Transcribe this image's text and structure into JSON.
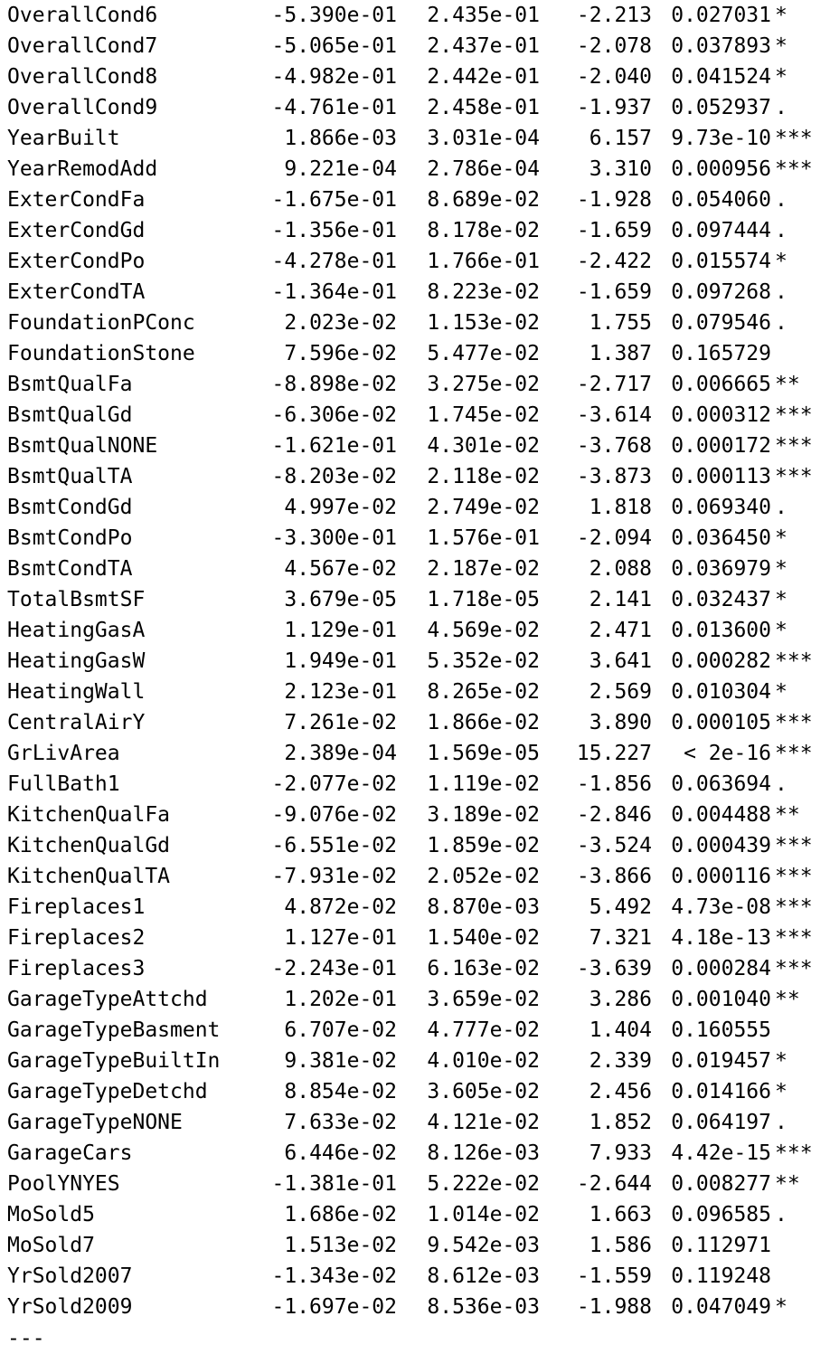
{
  "coefficients": [
    {
      "name": "OverallCond6",
      "estimate": "-5.390e-01",
      "std_error": "2.435e-01",
      "t_value": "-2.213",
      "p_value": "0.027031",
      "signif": "*"
    },
    {
      "name": "OverallCond7",
      "estimate": "-5.065e-01",
      "std_error": "2.437e-01",
      "t_value": "-2.078",
      "p_value": "0.037893",
      "signif": "*"
    },
    {
      "name": "OverallCond8",
      "estimate": "-4.982e-01",
      "std_error": "2.442e-01",
      "t_value": "-2.040",
      "p_value": "0.041524",
      "signif": "*"
    },
    {
      "name": "OverallCond9",
      "estimate": "-4.761e-01",
      "std_error": "2.458e-01",
      "t_value": "-1.937",
      "p_value": "0.052937",
      "signif": "."
    },
    {
      "name": "YearBuilt",
      "estimate": "1.866e-03",
      "std_error": "3.031e-04",
      "t_value": "6.157",
      "p_value": "9.73e-10",
      "signif": "***"
    },
    {
      "name": "YearRemodAdd",
      "estimate": "9.221e-04",
      "std_error": "2.786e-04",
      "t_value": "3.310",
      "p_value": "0.000956",
      "signif": "***"
    },
    {
      "name": "ExterCondFa",
      "estimate": "-1.675e-01",
      "std_error": "8.689e-02",
      "t_value": "-1.928",
      "p_value": "0.054060",
      "signif": "."
    },
    {
      "name": "ExterCondGd",
      "estimate": "-1.356e-01",
      "std_error": "8.178e-02",
      "t_value": "-1.659",
      "p_value": "0.097444",
      "signif": "."
    },
    {
      "name": "ExterCondPo",
      "estimate": "-4.278e-01",
      "std_error": "1.766e-01",
      "t_value": "-2.422",
      "p_value": "0.015574",
      "signif": "*"
    },
    {
      "name": "ExterCondTA",
      "estimate": "-1.364e-01",
      "std_error": "8.223e-02",
      "t_value": "-1.659",
      "p_value": "0.097268",
      "signif": "."
    },
    {
      "name": "FoundationPConc",
      "estimate": "2.023e-02",
      "std_error": "1.153e-02",
      "t_value": "1.755",
      "p_value": "0.079546",
      "signif": "."
    },
    {
      "name": "FoundationStone",
      "estimate": "7.596e-02",
      "std_error": "5.477e-02",
      "t_value": "1.387",
      "p_value": "0.165729",
      "signif": ""
    },
    {
      "name": "BsmtQualFa",
      "estimate": "-8.898e-02",
      "std_error": "3.275e-02",
      "t_value": "-2.717",
      "p_value": "0.006665",
      "signif": "**"
    },
    {
      "name": "BsmtQualGd",
      "estimate": "-6.306e-02",
      "std_error": "1.745e-02",
      "t_value": "-3.614",
      "p_value": "0.000312",
      "signif": "***"
    },
    {
      "name": "BsmtQualNONE",
      "estimate": "-1.621e-01",
      "std_error": "4.301e-02",
      "t_value": "-3.768",
      "p_value": "0.000172",
      "signif": "***"
    },
    {
      "name": "BsmtQualTA",
      "estimate": "-8.203e-02",
      "std_error": "2.118e-02",
      "t_value": "-3.873",
      "p_value": "0.000113",
      "signif": "***"
    },
    {
      "name": "BsmtCondGd",
      "estimate": "4.997e-02",
      "std_error": "2.749e-02",
      "t_value": "1.818",
      "p_value": "0.069340",
      "signif": "."
    },
    {
      "name": "BsmtCondPo",
      "estimate": "-3.300e-01",
      "std_error": "1.576e-01",
      "t_value": "-2.094",
      "p_value": "0.036450",
      "signif": "*"
    },
    {
      "name": "BsmtCondTA",
      "estimate": "4.567e-02",
      "std_error": "2.187e-02",
      "t_value": "2.088",
      "p_value": "0.036979",
      "signif": "*"
    },
    {
      "name": "TotalBsmtSF",
      "estimate": "3.679e-05",
      "std_error": "1.718e-05",
      "t_value": "2.141",
      "p_value": "0.032437",
      "signif": "*"
    },
    {
      "name": "HeatingGasA",
      "estimate": "1.129e-01",
      "std_error": "4.569e-02",
      "t_value": "2.471",
      "p_value": "0.013600",
      "signif": "*"
    },
    {
      "name": "HeatingGasW",
      "estimate": "1.949e-01",
      "std_error": "5.352e-02",
      "t_value": "3.641",
      "p_value": "0.000282",
      "signif": "***"
    },
    {
      "name": "HeatingWall",
      "estimate": "2.123e-01",
      "std_error": "8.265e-02",
      "t_value": "2.569",
      "p_value": "0.010304",
      "signif": "*"
    },
    {
      "name": "CentralAirY",
      "estimate": "7.261e-02",
      "std_error": "1.866e-02",
      "t_value": "3.890",
      "p_value": "0.000105",
      "signif": "***"
    },
    {
      "name": "GrLivArea",
      "estimate": "2.389e-04",
      "std_error": "1.569e-05",
      "t_value": "15.227",
      "p_value": "< 2e-16",
      "signif": "***"
    },
    {
      "name": "FullBath1",
      "estimate": "-2.077e-02",
      "std_error": "1.119e-02",
      "t_value": "-1.856",
      "p_value": "0.063694",
      "signif": "."
    },
    {
      "name": "KitchenQualFa",
      "estimate": "-9.076e-02",
      "std_error": "3.189e-02",
      "t_value": "-2.846",
      "p_value": "0.004488",
      "signif": "**"
    },
    {
      "name": "KitchenQualGd",
      "estimate": "-6.551e-02",
      "std_error": "1.859e-02",
      "t_value": "-3.524",
      "p_value": "0.000439",
      "signif": "***"
    },
    {
      "name": "KitchenQualTA",
      "estimate": "-7.931e-02",
      "std_error": "2.052e-02",
      "t_value": "-3.866",
      "p_value": "0.000116",
      "signif": "***"
    },
    {
      "name": "Fireplaces1",
      "estimate": "4.872e-02",
      "std_error": "8.870e-03",
      "t_value": "5.492",
      "p_value": "4.73e-08",
      "signif": "***"
    },
    {
      "name": "Fireplaces2",
      "estimate": "1.127e-01",
      "std_error": "1.540e-02",
      "t_value": "7.321",
      "p_value": "4.18e-13",
      "signif": "***"
    },
    {
      "name": "Fireplaces3",
      "estimate": "-2.243e-01",
      "std_error": "6.163e-02",
      "t_value": "-3.639",
      "p_value": "0.000284",
      "signif": "***"
    },
    {
      "name": "GarageTypeAttchd",
      "estimate": "1.202e-01",
      "std_error": "3.659e-02",
      "t_value": "3.286",
      "p_value": "0.001040",
      "signif": "**"
    },
    {
      "name": "GarageTypeBasment",
      "estimate": "6.707e-02",
      "std_error": "4.777e-02",
      "t_value": "1.404",
      "p_value": "0.160555",
      "signif": ""
    },
    {
      "name": "GarageTypeBuiltIn",
      "estimate": "9.381e-02",
      "std_error": "4.010e-02",
      "t_value": "2.339",
      "p_value": "0.019457",
      "signif": "*"
    },
    {
      "name": "GarageTypeDetchd",
      "estimate": "8.854e-02",
      "std_error": "3.605e-02",
      "t_value": "2.456",
      "p_value": "0.014166",
      "signif": "*"
    },
    {
      "name": "GarageTypeNONE",
      "estimate": "7.633e-02",
      "std_error": "4.121e-02",
      "t_value": "1.852",
      "p_value": "0.064197",
      "signif": "."
    },
    {
      "name": "GarageCars",
      "estimate": "6.446e-02",
      "std_error": "8.126e-03",
      "t_value": "7.933",
      "p_value": "4.42e-15",
      "signif": "***"
    },
    {
      "name": "PoolYNYES",
      "estimate": "-1.381e-01",
      "std_error": "5.222e-02",
      "t_value": "-2.644",
      "p_value": "0.008277",
      "signif": "**"
    },
    {
      "name": "MoSold5",
      "estimate": "1.686e-02",
      "std_error": "1.014e-02",
      "t_value": "1.663",
      "p_value": "0.096585",
      "signif": "."
    },
    {
      "name": "MoSold7",
      "estimate": "1.513e-02",
      "std_error": "9.542e-03",
      "t_value": "1.586",
      "p_value": "0.112971",
      "signif": ""
    },
    {
      "name": "YrSold2007",
      "estimate": "-1.343e-02",
      "std_error": "8.612e-03",
      "t_value": "-1.559",
      "p_value": "0.119248",
      "signif": ""
    },
    {
      "name": "YrSold2009",
      "estimate": "-1.697e-02",
      "std_error": "8.536e-03",
      "t_value": "-1.988",
      "p_value": "0.047049",
      "signif": "*"
    }
  ],
  "separator": "---"
}
